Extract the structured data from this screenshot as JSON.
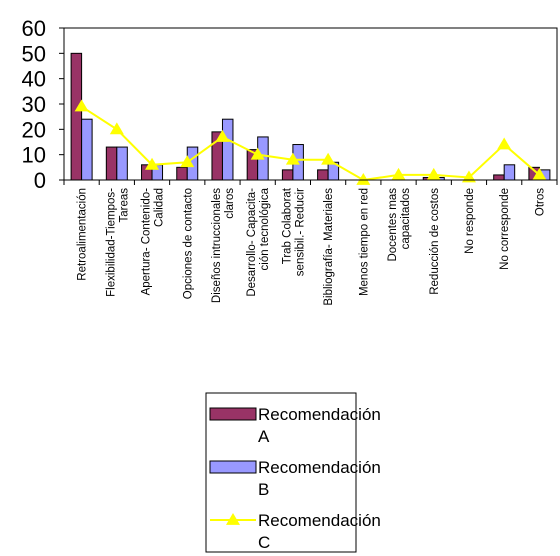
{
  "chart_data": {
    "type": "bar",
    "categories": [
      [
        "Retroalimentación"
      ],
      [
        "Flexibilidad-Tiempos-",
        "Tareas"
      ],
      [
        "Apertura- Contenido-",
        "Calidad"
      ],
      [
        "Opciones de contacto"
      ],
      [
        "Diseños intruccionales",
        "claros"
      ],
      [
        "Desarrollo- Capacita-",
        "ción tecnológica"
      ],
      [
        "Trab Colaborat",
        "sensibil.- Reducir"
      ],
      [
        "Bibliografía- Materiales"
      ],
      [
        "Menos tiempo en red"
      ],
      [
        "Docentes mas",
        "capacitados"
      ],
      [
        "Reducción de costos"
      ],
      [
        "No responde"
      ],
      [
        "No corresponde"
      ],
      [
        "Otros"
      ]
    ],
    "series": [
      {
        "name": "Recomendación A",
        "kind": "bar",
        "color": "#993366",
        "values": [
          50,
          13,
          6,
          5,
          19,
          12,
          4,
          4,
          0,
          0,
          1,
          0,
          2,
          5
        ]
      },
      {
        "name": "Recomendación B",
        "kind": "bar",
        "color": "#9999ff",
        "values": [
          24,
          13,
          6,
          13,
          24,
          17,
          14,
          7,
          0,
          0,
          1,
          0,
          6,
          4
        ]
      },
      {
        "name": "Recomendación C",
        "kind": "line",
        "color": "#ffff00",
        "values": [
          29,
          20,
          6,
          7,
          17,
          10,
          8,
          8,
          0,
          2,
          2,
          1,
          14,
          2
        ]
      }
    ],
    "yticks": [
      0,
      10,
      20,
      30,
      40,
      50,
      60
    ],
    "ylim": [
      0,
      60
    ],
    "grid": false,
    "legend": {
      "position": "bottom-center",
      "labels": [
        [
          "Recomendación",
          "A"
        ],
        [
          "Recomendación",
          "B"
        ],
        [
          "Recomendación",
          "C"
        ]
      ]
    }
  }
}
